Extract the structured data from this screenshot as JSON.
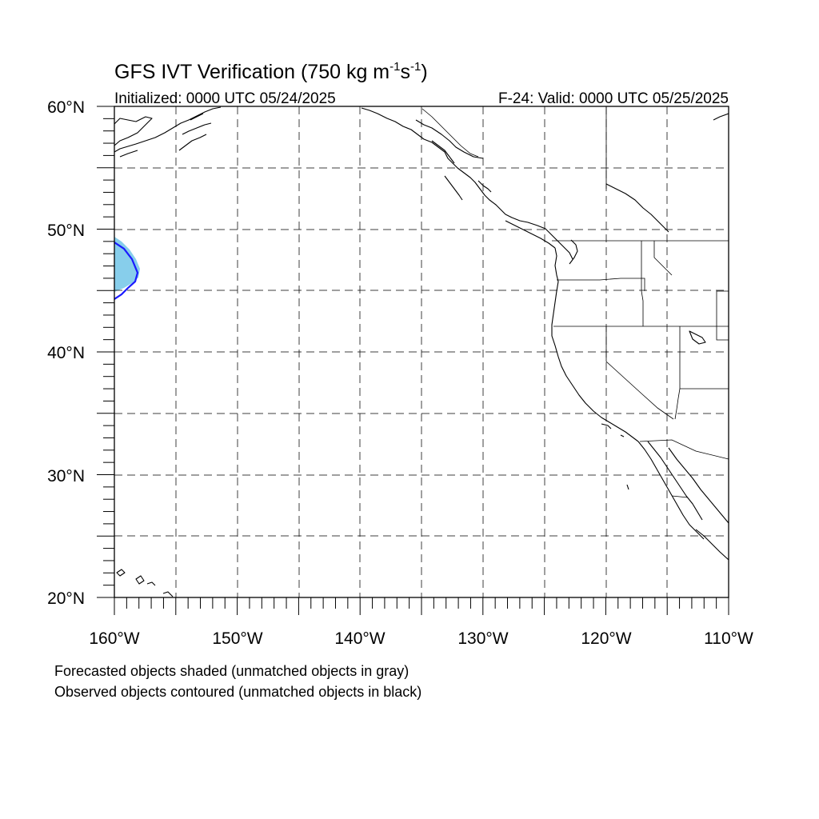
{
  "title": {
    "main": "GFS IVT Verification (750 kg m",
    "exp1": "-1",
    "mid": "s",
    "exp2": "-1",
    "close": ")"
  },
  "initialized": "Initialized: 0000 UTC 05/24/2025",
  "valid": "F-24: Valid: 0000 UTC 05/25/2025",
  "lat_labels": [
    "60°N",
    "50°N",
    "40°N",
    "30°N",
    "20°N"
  ],
  "lon_labels": [
    "160°W",
    "150°W",
    "140°W",
    "130°W",
    "120°W",
    "110°W"
  ],
  "notes": [
    "Forecasted objects shaded (unmatched objects in gray)",
    "Observed objects contoured (unmatched objects in black)"
  ],
  "colors": {
    "forecast_fill": "#87CEEB",
    "observed_contour": "#1a1aff"
  }
}
